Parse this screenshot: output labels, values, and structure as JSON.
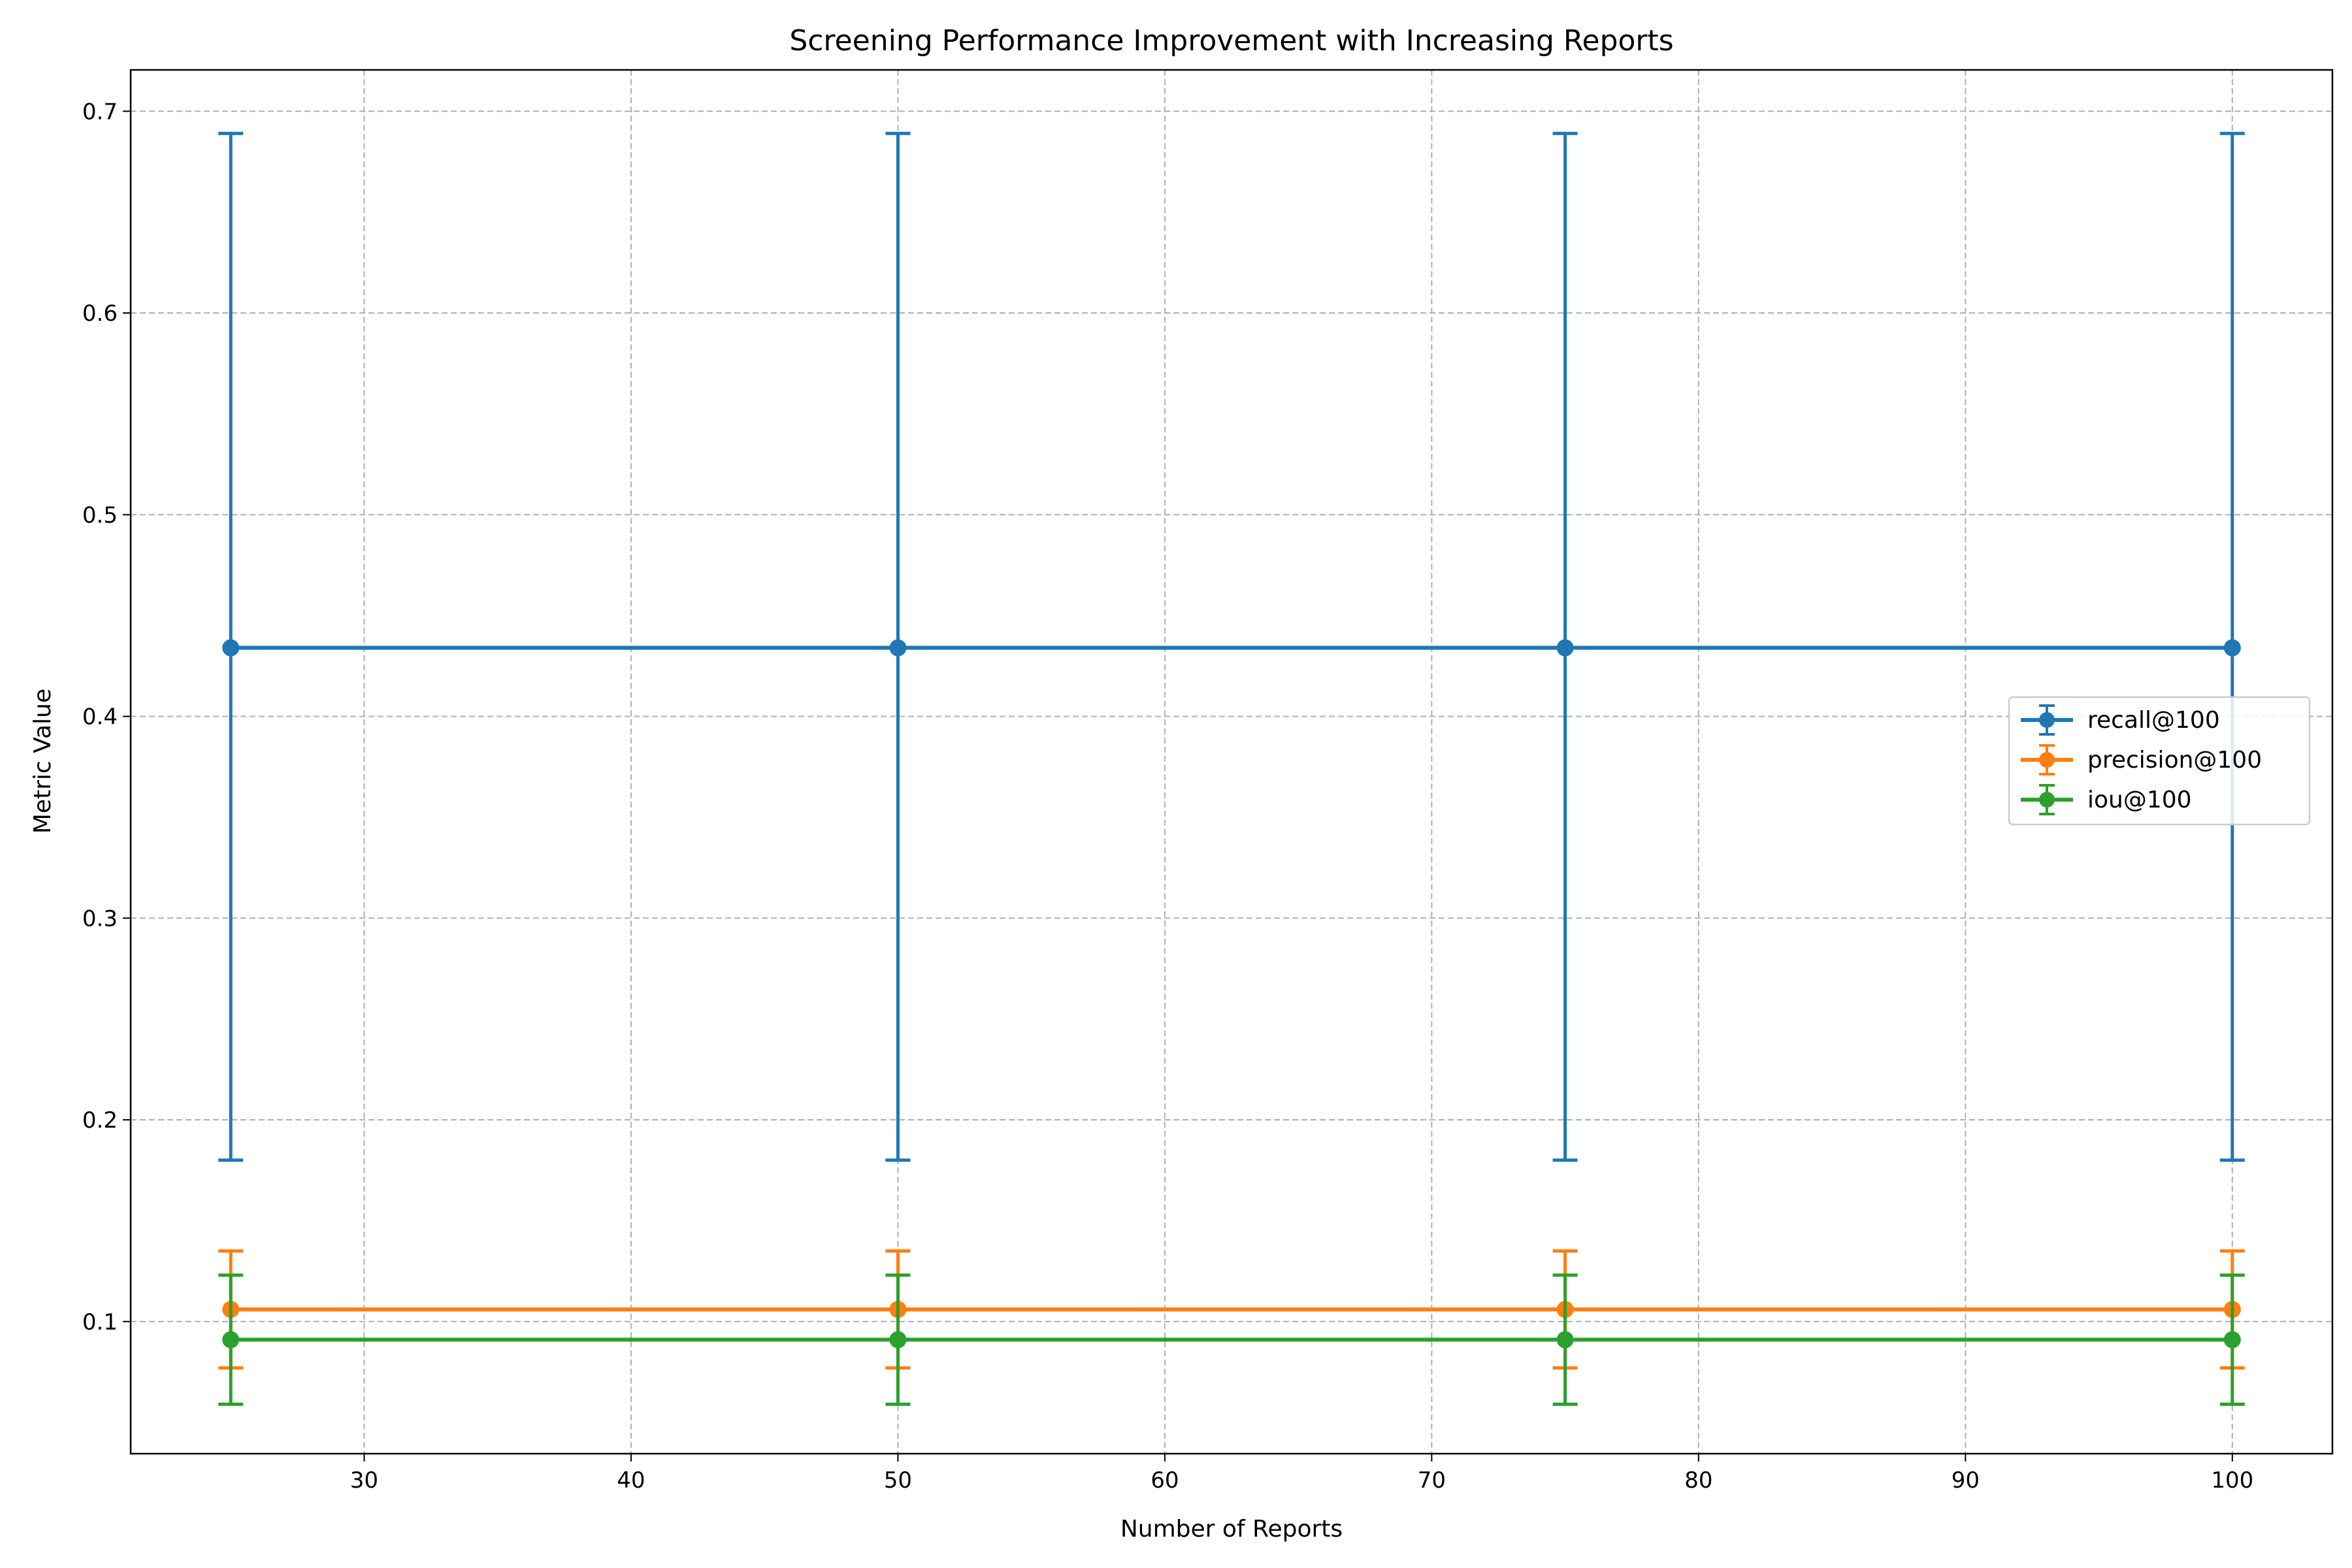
{
  "chart_data": {
    "type": "line",
    "title": "Screening Performance Improvement with Increasing Reports",
    "xlabel": "Number of Reports",
    "ylabel": "Metric Value",
    "x": [
      25,
      50,
      75,
      100
    ],
    "xlim": [
      21.25,
      103.75
    ],
    "ylim": [
      0.0345,
      0.7205
    ],
    "xticks": [
      30,
      40,
      50,
      60,
      70,
      80,
      90,
      100
    ],
    "yticks": [
      0.1,
      0.2,
      0.3,
      0.4,
      0.5,
      0.6,
      0.7
    ],
    "grid": true,
    "legend_position": "center-right",
    "series": [
      {
        "name": "recall@100",
        "color": "#1f77b4",
        "values": [
          0.434,
          0.434,
          0.434,
          0.434
        ],
        "error_low": [
          0.18,
          0.18,
          0.18,
          0.18
        ],
        "error_high": [
          0.689,
          0.689,
          0.689,
          0.689
        ]
      },
      {
        "name": "precision@100",
        "color": "#ff7f0e",
        "values": [
          0.106,
          0.106,
          0.106,
          0.106
        ],
        "error_low": [
          0.077,
          0.077,
          0.077,
          0.077
        ],
        "error_high": [
          0.135,
          0.135,
          0.135,
          0.135
        ]
      },
      {
        "name": "iou@100",
        "color": "#2ca02c",
        "values": [
          0.091,
          0.091,
          0.091,
          0.091
        ],
        "error_low": [
          0.059,
          0.059,
          0.059,
          0.059
        ],
        "error_high": [
          0.123,
          0.123,
          0.123,
          0.123
        ]
      }
    ]
  }
}
